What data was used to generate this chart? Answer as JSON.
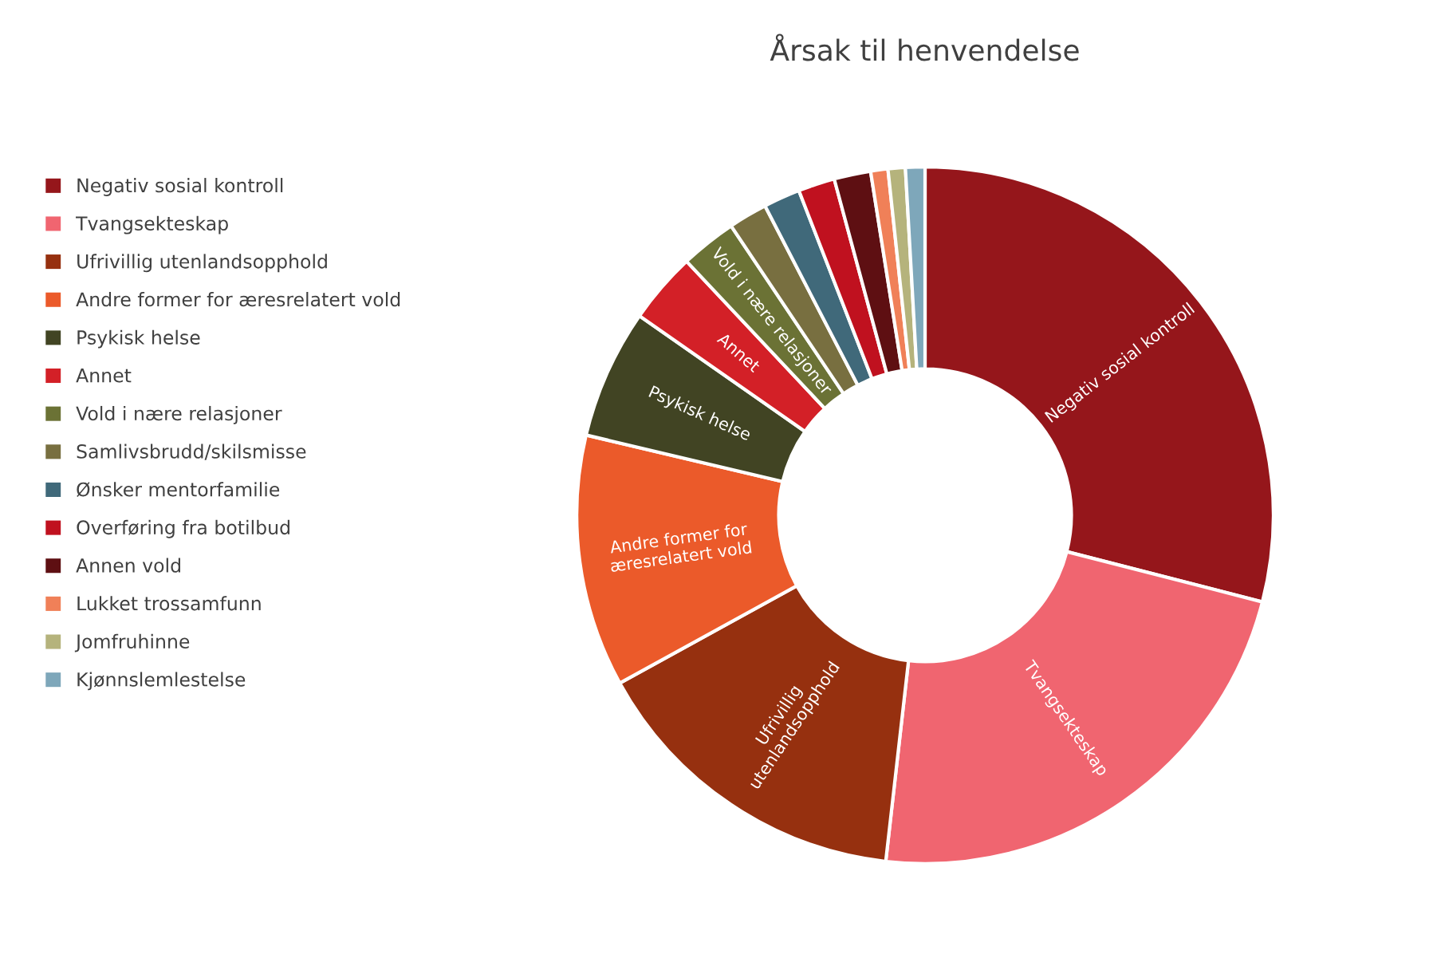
{
  "chart_data": {
    "type": "donut",
    "title": "Årsak til henvendelse",
    "categories": [
      "Negativ sosial kontroll",
      "Tvangsekteskap",
      "Ufrivillig utenlandsopphold",
      "Andre former for æresrelatert vold",
      "Psykisk helse",
      "Annet",
      "Vold i nære relasjoner",
      "Samlivsbrudd/skilsmisse",
      "Ønsker mentorfamilie",
      "Overføring fra botilbud",
      "Annen vold",
      "Lukket trossamfunn",
      "Jomfruhinne",
      "Kjønnslemlestelse"
    ],
    "values": [
      29.0,
      22.8,
      15.2,
      11.7,
      6.0,
      3.3,
      2.6,
      1.8,
      1.7,
      1.7,
      1.7,
      0.8,
      0.8,
      0.9
    ],
    "colors": [
      "#95161b",
      "#f06570",
      "#96300f",
      "#eb5a2a",
      "#414423",
      "#d32027",
      "#6b7235",
      "#786f40",
      "#40697a",
      "#c0111f",
      "#5e0f12",
      "#f08058",
      "#b5b37c",
      "#7ea7ba"
    ],
    "annotations": [
      {
        "text": "Negativ sosial kontroll",
        "x": "Negativ sosial kontroll"
      },
      {
        "text": "Tvangsekteskap",
        "x": "Tvangsekteskap"
      },
      {
        "text": "Ufrivillig\nutenlandsopphold",
        "x": "Ufrivillig utenlandsopphold"
      },
      {
        "text": "Andre former for\næresrelatert vold",
        "x": "Andre former for æresrelatert vold"
      },
      {
        "text": "Psykisk helse",
        "x": "Psykisk helse"
      },
      {
        "text": "Annet",
        "x": "Annet"
      },
      {
        "text": "Vold i nære relasjoner",
        "x": "Vold i nære relasjoner"
      }
    ],
    "legend": "left"
  }
}
